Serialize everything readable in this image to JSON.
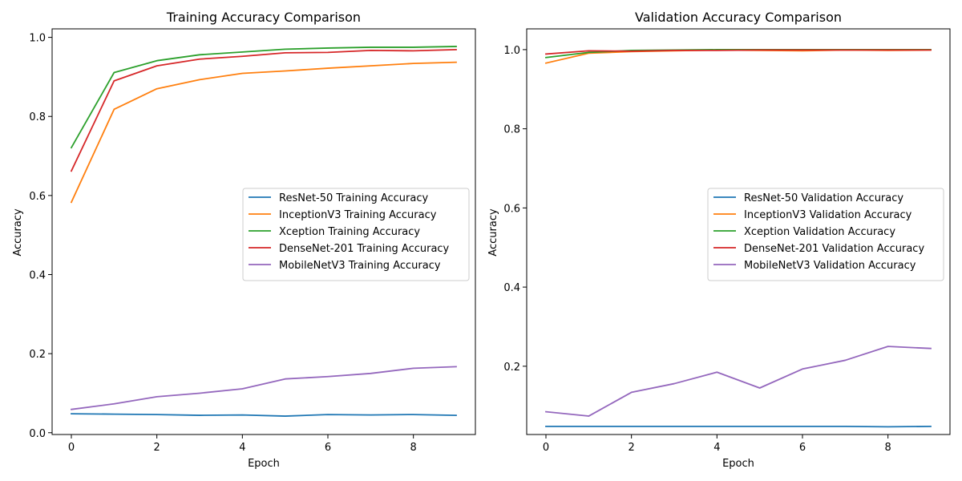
{
  "chart_data": [
    {
      "type": "line",
      "title": "Training Accuracy Comparison",
      "xlabel": "Epoch",
      "ylabel": "Accuracy",
      "xlim": [
        -0.45,
        9.45
      ],
      "ylim": [
        -0.0045,
        1.0215
      ],
      "xticks": [
        0,
        2,
        4,
        6,
        8
      ],
      "yticks": [
        0.0,
        0.2,
        0.4,
        0.6,
        0.8,
        1.0
      ],
      "legend_position": "center-right",
      "grid": false,
      "x": [
        0,
        1,
        2,
        3,
        4,
        5,
        6,
        7,
        8,
        9
      ],
      "series": [
        {
          "name": "ResNet-50 Training Accuracy",
          "color": "#1f77b4",
          "values": [
            0.048,
            0.047,
            0.046,
            0.044,
            0.045,
            0.042,
            0.046,
            0.045,
            0.046,
            0.044
          ]
        },
        {
          "name": "InceptionV3 Training Accuracy",
          "color": "#ff7f0e",
          "values": [
            0.583,
            0.818,
            0.87,
            0.893,
            0.909,
            0.915,
            0.922,
            0.928,
            0.934,
            0.937
          ]
        },
        {
          "name": "Xception Training Accuracy",
          "color": "#2ca02c",
          "values": [
            0.721,
            0.911,
            0.941,
            0.956,
            0.963,
            0.97,
            0.973,
            0.975,
            0.975,
            0.977
          ]
        },
        {
          "name": "DenseNet-201 Training Accuracy",
          "color": "#d62728",
          "values": [
            0.662,
            0.89,
            0.928,
            0.945,
            0.952,
            0.961,
            0.962,
            0.967,
            0.966,
            0.969
          ]
        },
        {
          "name": "MobileNetV3 Training Accuracy",
          "color": "#9467bd",
          "values": [
            0.059,
            0.073,
            0.091,
            0.1,
            0.111,
            0.136,
            0.142,
            0.15,
            0.163,
            0.167
          ]
        }
      ]
    },
    {
      "type": "line",
      "title": "Validation Accuracy Comparison",
      "xlabel": "Epoch",
      "ylabel": "Accuracy",
      "xlim": [
        -0.45,
        9.45
      ],
      "ylim": [
        0.0275,
        1.0525
      ],
      "xticks": [
        0,
        2,
        4,
        6,
        8
      ],
      "yticks": [
        0.2,
        0.4,
        0.6,
        0.8,
        1.0
      ],
      "legend_position": "center-right",
      "grid": false,
      "x": [
        0,
        1,
        2,
        3,
        4,
        5,
        6,
        7,
        8,
        9
      ],
      "series": [
        {
          "name": "ResNet-50 Validation Accuracy",
          "color": "#1f77b4",
          "values": [
            0.048,
            0.048,
            0.048,
            0.048,
            0.048,
            0.048,
            0.048,
            0.048,
            0.047,
            0.048
          ]
        },
        {
          "name": "InceptionV3 Validation Accuracy",
          "color": "#ff7f0e",
          "values": [
            0.966,
            0.991,
            0.995,
            0.997,
            0.999,
            0.998,
            0.997,
            0.999,
            0.998,
            0.999
          ]
        },
        {
          "name": "Xception Validation Accuracy",
          "color": "#2ca02c",
          "values": [
            0.98,
            0.993,
            0.998,
            0.999,
            1.0,
            1.0,
            1.0,
            1.0,
            1.0,
            1.0
          ]
        },
        {
          "name": "DenseNet-201 Validation Accuracy",
          "color": "#d62728",
          "values": [
            0.989,
            0.997,
            0.996,
            0.998,
            0.998,
            0.999,
            0.999,
            0.999,
            0.999,
            0.999
          ]
        },
        {
          "name": "MobileNetV3 Validation Accuracy",
          "color": "#9467bd",
          "values": [
            0.085,
            0.074,
            0.134,
            0.156,
            0.185,
            0.145,
            0.193,
            0.215,
            0.25,
            0.245
          ]
        }
      ]
    }
  ]
}
